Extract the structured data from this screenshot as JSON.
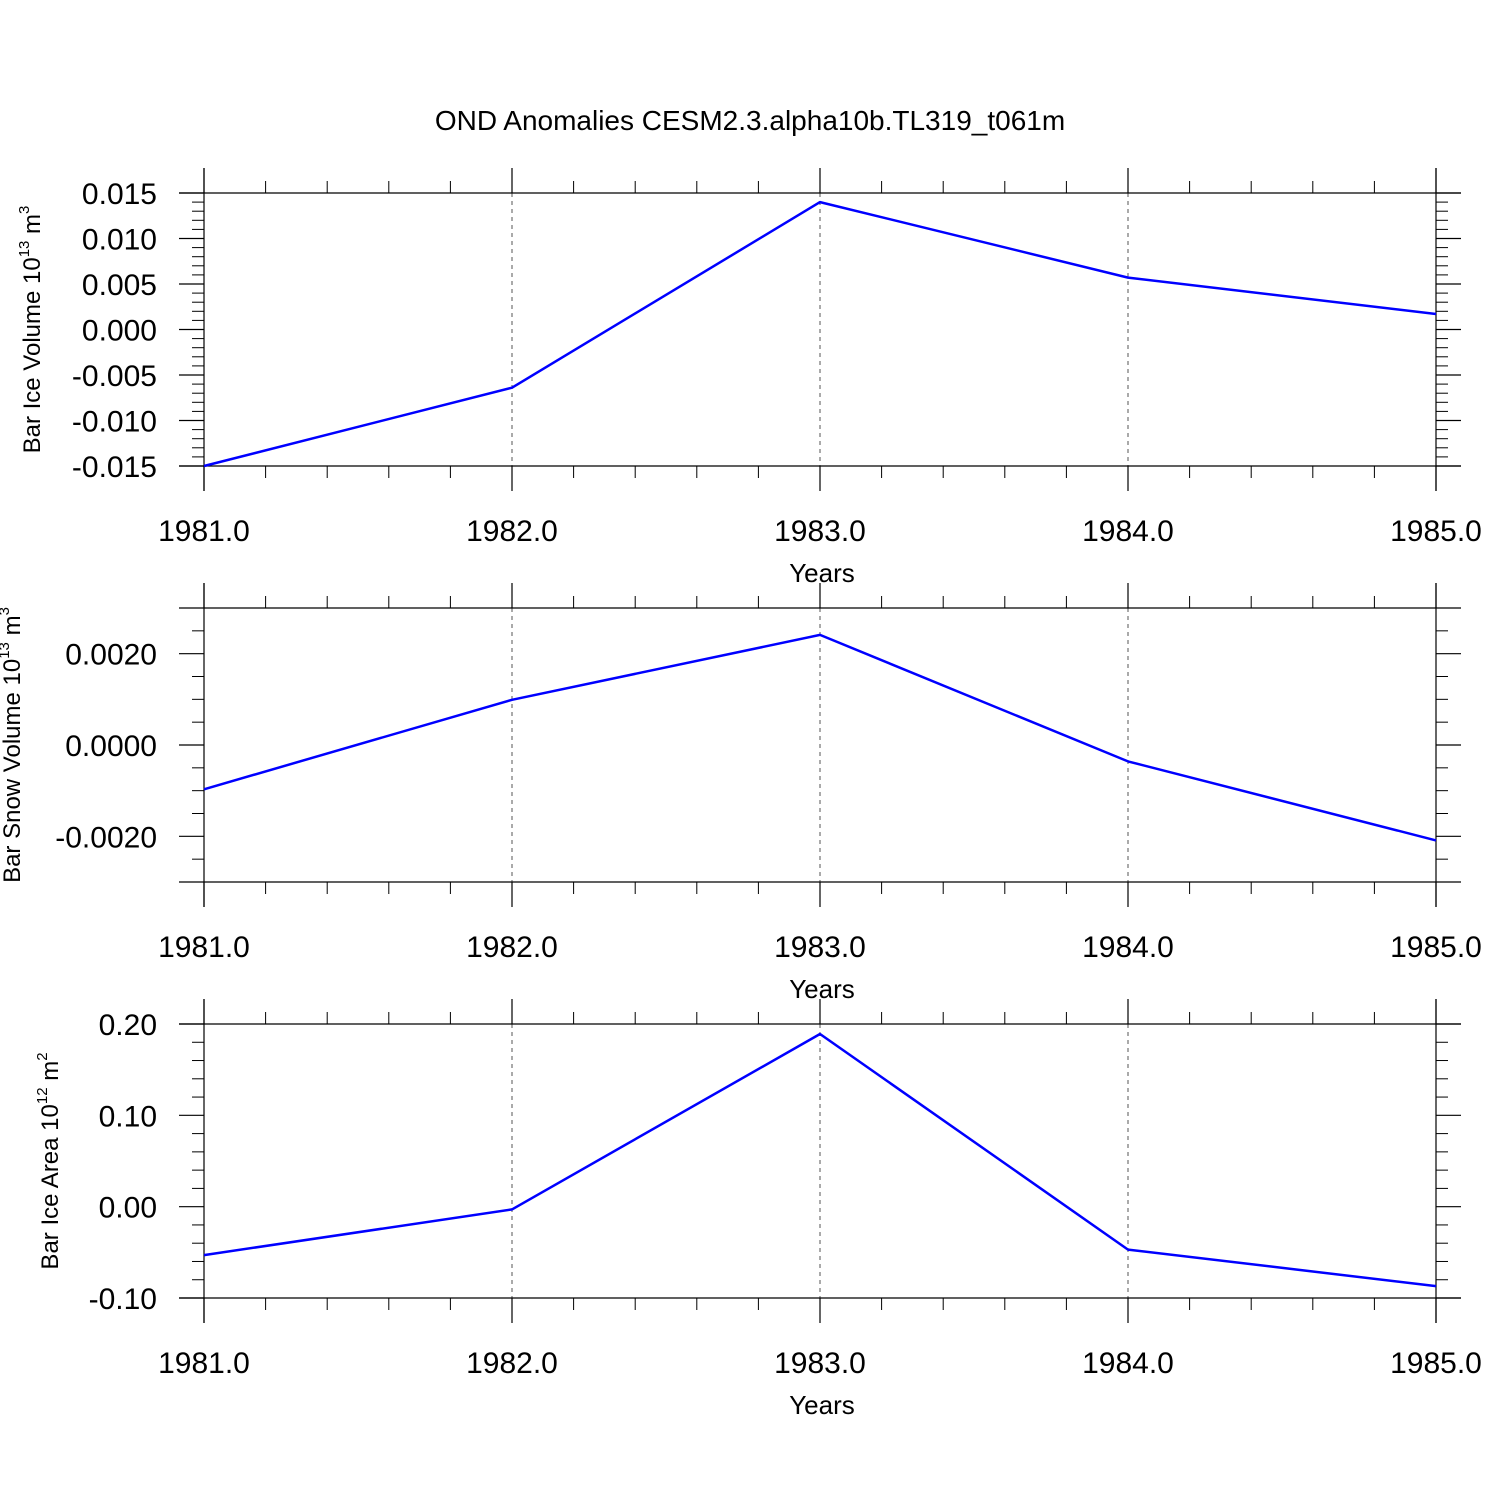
{
  "figure": {
    "title": "OND Anomalies CESM2.3.alpha10b.TL319_t061m"
  },
  "chart_data": [
    {
      "type": "line",
      "x": [
        1981,
        1982,
        1983,
        1984,
        1985
      ],
      "series": [
        {
          "values": [
            -0.015,
            -0.0064,
            0.014,
            0.0057,
            0.0017
          ],
          "color": "#0000ff"
        }
      ],
      "xlabel": "Years",
      "ylabel": {
        "prefix": "Bar Ice Volume 10",
        "exponent": "13",
        "unit": " m",
        "unit_exponent": "3"
      },
      "xlim": [
        1981,
        1985
      ],
      "ylim": [
        -0.015,
        0.015
      ],
      "xticks": [
        1981,
        1982,
        1983,
        1984,
        1985
      ],
      "xtick_labels": [
        "1981.0",
        "1982.0",
        "1983.0",
        "1984.0",
        "1985.0"
      ],
      "yticks": [
        -0.015,
        -0.01,
        -0.005,
        0.0,
        0.005,
        0.01,
        0.015
      ],
      "ytick_labels": [
        "-0.015",
        "-0.010",
        "-0.005",
        "0.000",
        "0.005",
        "0.010",
        "0.015"
      ],
      "y_minor_step": 0.001,
      "x_minor_step": 0.2,
      "grid": "vertical-dashed-at-major-x"
    },
    {
      "type": "line",
      "x": [
        1981,
        1982,
        1983,
        1984,
        1985
      ],
      "series": [
        {
          "values": [
            -0.00097,
            0.00099,
            0.00241,
            -0.00036,
            -0.00209
          ],
          "color": "#0000ff"
        }
      ],
      "xlabel": "Years",
      "ylabel": {
        "prefix": "Bar Snow Volume 10",
        "exponent": "13",
        "unit": " m",
        "unit_exponent": "3"
      },
      "xlim": [
        1981,
        1985
      ],
      "ylim": [
        -0.003,
        0.003
      ],
      "xticks": [
        1981,
        1982,
        1983,
        1984,
        1985
      ],
      "xtick_labels": [
        "1981.0",
        "1982.0",
        "1983.0",
        "1984.0",
        "1985.0"
      ],
      "yticks": [
        -0.002,
        0.0,
        0.002
      ],
      "ytick_labels": [
        "-0.0020",
        "0.0000",
        "0.0020"
      ],
      "y_minor_step": 0.0005,
      "x_minor_step": 0.2,
      "grid": "vertical-dashed-at-major-x"
    },
    {
      "type": "line",
      "x": [
        1981,
        1982,
        1983,
        1984,
        1985
      ],
      "series": [
        {
          "values": [
            -0.053,
            -0.003,
            0.189,
            -0.047,
            -0.087
          ],
          "color": "#0000ff"
        }
      ],
      "xlabel": "Years",
      "ylabel": {
        "prefix": "Bar Ice Area 10",
        "exponent": "12",
        "unit": " m",
        "unit_exponent": "2"
      },
      "xlim": [
        1981,
        1985
      ],
      "ylim": [
        -0.1,
        0.2
      ],
      "xticks": [
        1981,
        1982,
        1983,
        1984,
        1985
      ],
      "xtick_labels": [
        "1981.0",
        "1982.0",
        "1983.0",
        "1984.0",
        "1985.0"
      ],
      "yticks": [
        -0.1,
        0.0,
        0.1,
        0.2
      ],
      "ytick_labels": [
        "-0.10",
        "0.00",
        "0.10",
        "0.20"
      ],
      "y_minor_step": 0.02,
      "x_minor_step": 0.2,
      "grid": "vertical-dashed-at-major-x"
    }
  ]
}
